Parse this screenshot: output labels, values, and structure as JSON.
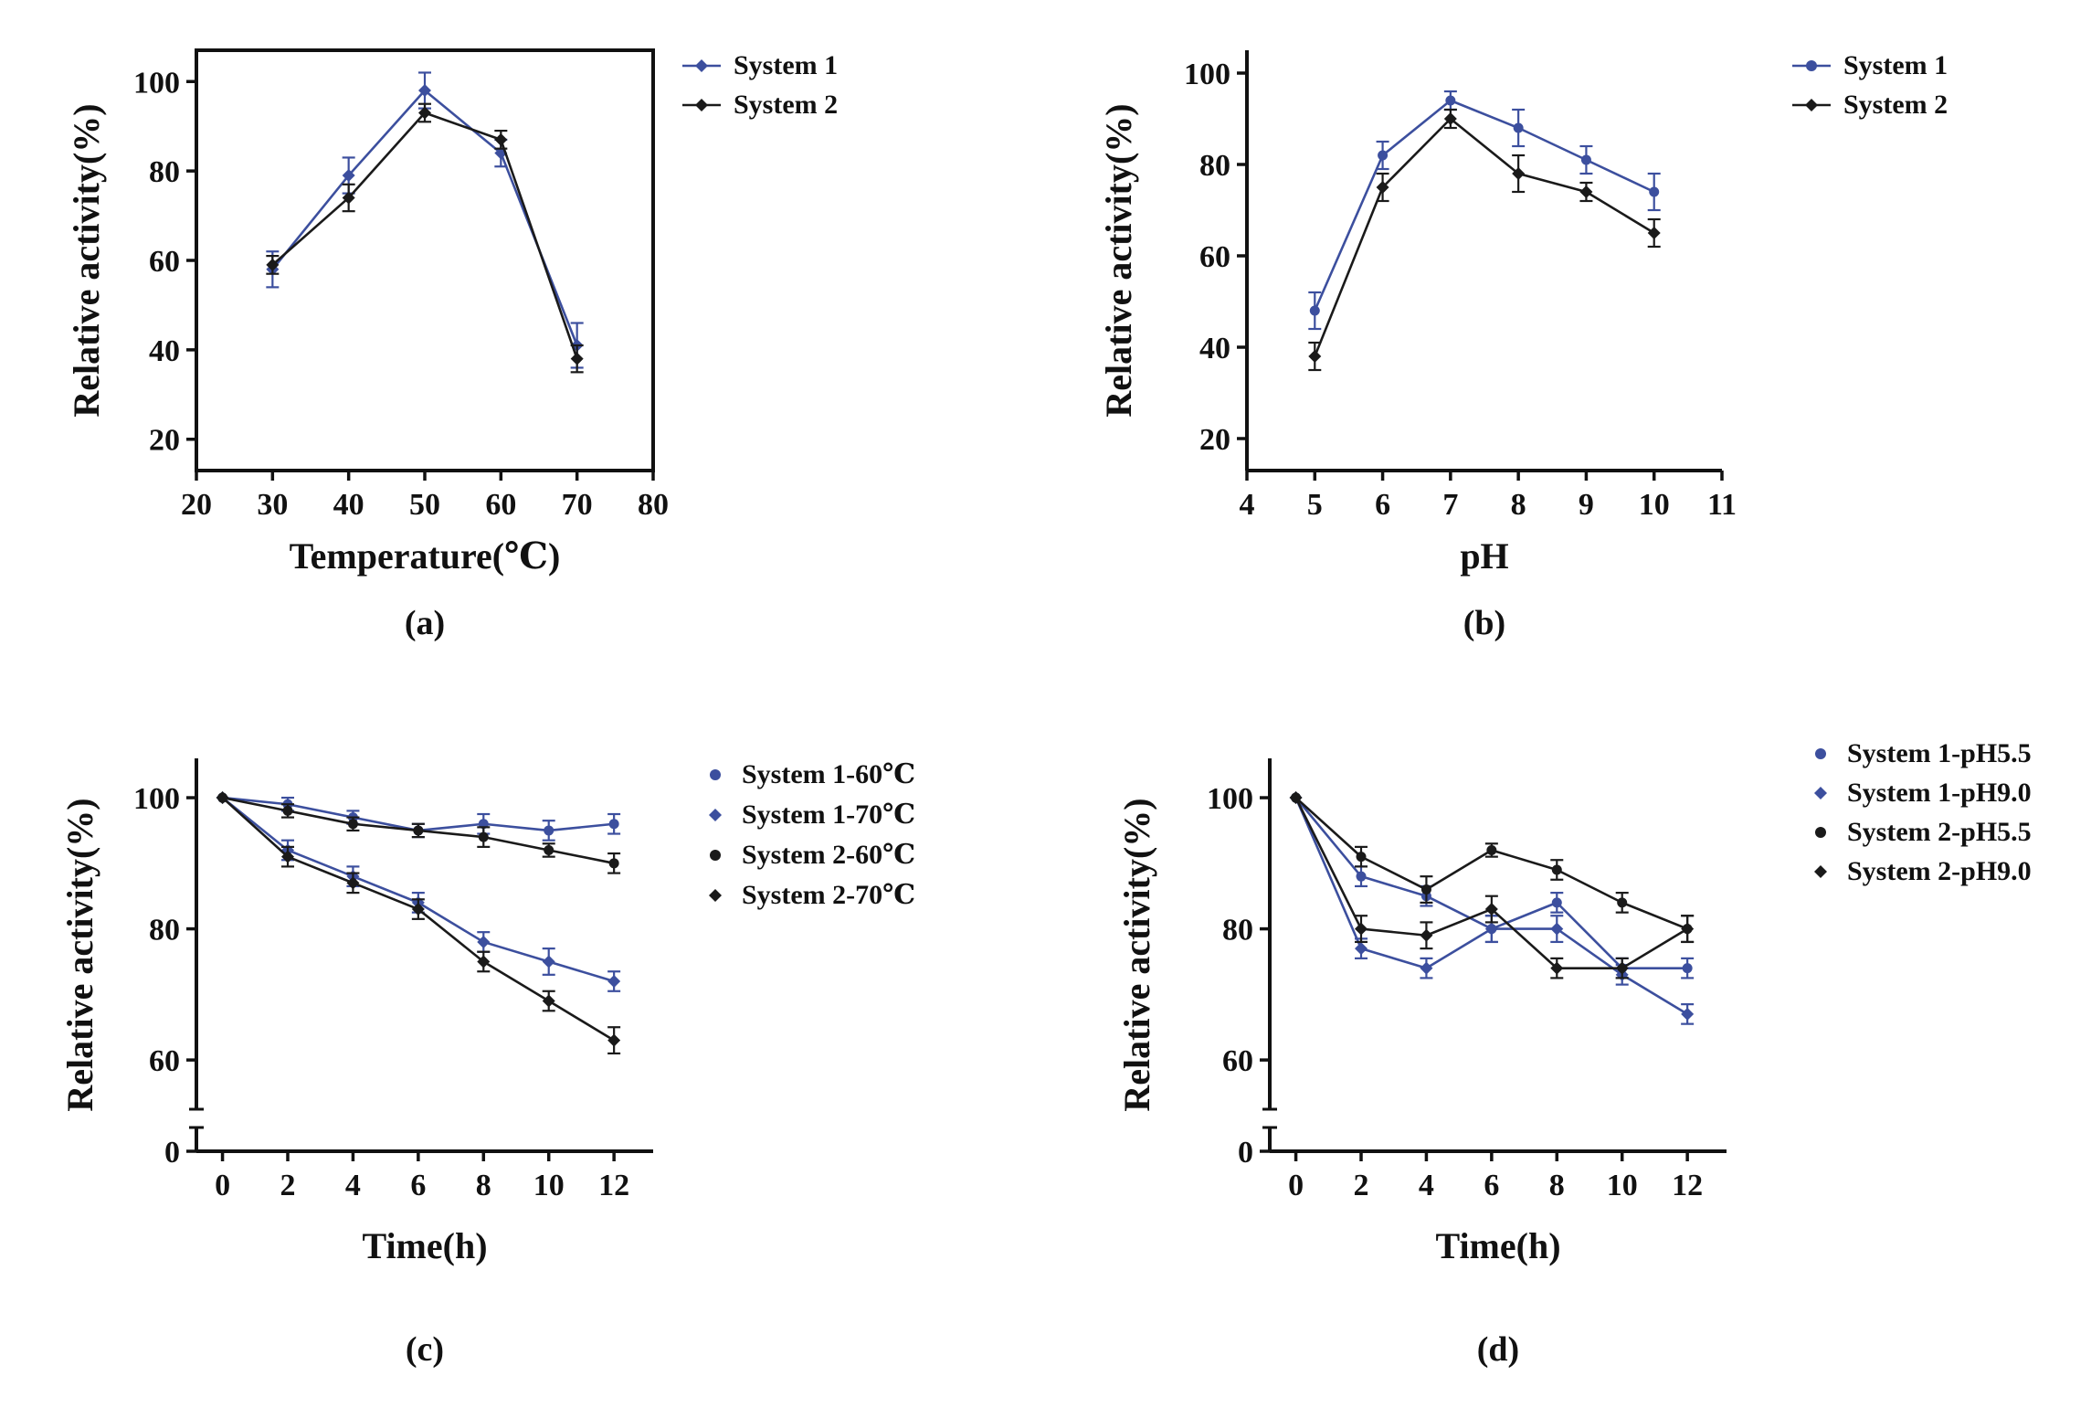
{
  "page": {
    "background": "#ffffff"
  },
  "palette": {
    "system1_blue": "#3c4f9e",
    "system2_black": "#1a1a1a",
    "axis": "#111111"
  },
  "chart_data": [
    {
      "type": "line",
      "panel": "a",
      "caption": "(a)",
      "title": "",
      "xlabel": "Temperature(℃)",
      "ylabel": "Relative activity(%)",
      "x": [
        30,
        40,
        50,
        60,
        70
      ],
      "xlim": [
        20,
        80
      ],
      "xticks": [
        20,
        30,
        40,
        50,
        60,
        70,
        80
      ],
      "ylim": [
        13,
        107
      ],
      "yticks": [
        20,
        40,
        60,
        80,
        100
      ],
      "frame": "box",
      "grid": false,
      "legend_position": "outside-top-right",
      "series": [
        {
          "name": "System 1",
          "color": "#3c4f9e",
          "marker": "diamond",
          "values": [
            58,
            79,
            98,
            84,
            41
          ],
          "errors": [
            4,
            4,
            4,
            3,
            5
          ]
        },
        {
          "name": "System 2",
          "color": "#1a1a1a",
          "marker": "diamond",
          "values": [
            59,
            74,
            93,
            87,
            38
          ],
          "errors": [
            2,
            3,
            2,
            2,
            3
          ]
        }
      ]
    },
    {
      "type": "line",
      "panel": "b",
      "caption": "(b)",
      "title": "",
      "xlabel": "pH",
      "ylabel": "Relative activity(%)",
      "x": [
        5,
        6,
        7,
        8,
        9,
        10
      ],
      "xlim": [
        4,
        11
      ],
      "xticks": [
        4,
        5,
        6,
        7,
        8,
        9,
        10,
        11
      ],
      "ylim": [
        13,
        105
      ],
      "yticks": [
        20,
        40,
        60,
        80,
        100
      ],
      "frame": "L",
      "grid": false,
      "legend_position": "outside-top-right",
      "series": [
        {
          "name": "System 1",
          "color": "#3c4f9e",
          "marker": "circle",
          "values": [
            48,
            82,
            94,
            88,
            81,
            74
          ],
          "errors": [
            4,
            3,
            2,
            4,
            3,
            4
          ]
        },
        {
          "name": "System 2",
          "color": "#1a1a1a",
          "marker": "diamond",
          "values": [
            38,
            75,
            90,
            78,
            74,
            65
          ],
          "errors": [
            3,
            3,
            2,
            4,
            2,
            3
          ]
        }
      ]
    },
    {
      "type": "line",
      "panel": "c",
      "caption": "(c)",
      "title": "",
      "xlabel": "Time(h)",
      "ylabel": "Relative activity(%)",
      "x": [
        0,
        2,
        4,
        6,
        8,
        10,
        12
      ],
      "xlim": [
        -0.8,
        13.2
      ],
      "xticks": [
        0,
        2,
        4,
        6,
        8,
        10,
        12
      ],
      "ylim": [
        55,
        106
      ],
      "yticks": [
        0,
        60,
        80,
        100
      ],
      "ybreak": {
        "enabled": true,
        "resume_value": 55,
        "lower_tick": 0
      },
      "frame": "L",
      "grid": false,
      "legend_position": "outside-top-right",
      "series": [
        {
          "name": "System 1-60℃",
          "color": "#3c4f9e",
          "marker": "circle",
          "values": [
            100,
            99,
            97,
            95,
            96,
            95,
            96
          ],
          "errors": [
            0,
            1,
            1,
            1,
            1.5,
            1.5,
            1.5
          ]
        },
        {
          "name": "System 1-70℃",
          "color": "#3c4f9e",
          "marker": "diamond",
          "values": [
            100,
            92,
            88,
            84,
            78,
            75,
            72
          ],
          "errors": [
            0,
            1.5,
            1.5,
            1.5,
            1.5,
            2,
            1.5
          ]
        },
        {
          "name": "System 2-60℃",
          "color": "#1a1a1a",
          "marker": "circle",
          "values": [
            100,
            98,
            96,
            95,
            94,
            92,
            90
          ],
          "errors": [
            0,
            1,
            1,
            1,
            1.5,
            1,
            1.5
          ]
        },
        {
          "name": "System 2-70℃",
          "color": "#1a1a1a",
          "marker": "diamond",
          "values": [
            100,
            91,
            87,
            83,
            75,
            69,
            63
          ],
          "errors": [
            0,
            1.5,
            1.5,
            1.5,
            1.5,
            1.5,
            2
          ]
        }
      ]
    },
    {
      "type": "line",
      "panel": "d",
      "caption": "(d)",
      "title": "",
      "xlabel": "Time(h)",
      "ylabel": "Relative activity(%)",
      "x": [
        0,
        2,
        4,
        6,
        8,
        10,
        12
      ],
      "xlim": [
        -0.8,
        13.2
      ],
      "xticks": [
        0,
        2,
        4,
        6,
        8,
        10,
        12
      ],
      "ylim": [
        55,
        106
      ],
      "yticks": [
        0,
        60,
        80,
        100
      ],
      "ybreak": {
        "enabled": true,
        "resume_value": 55,
        "lower_tick": 0
      },
      "frame": "L",
      "grid": false,
      "legend_position": "outside-top-right",
      "series": [
        {
          "name": "System 1-pH5.5",
          "color": "#3c4f9e",
          "marker": "circle",
          "values": [
            100,
            88,
            85,
            80,
            84,
            74,
            74
          ],
          "errors": [
            0,
            1.5,
            1.5,
            2,
            1.5,
            1.5,
            1.5
          ]
        },
        {
          "name": "System 1-pH9.0",
          "color": "#3c4f9e",
          "marker": "diamond",
          "values": [
            100,
            77,
            74,
            80,
            80,
            73,
            67
          ],
          "errors": [
            0,
            1.5,
            1.5,
            2,
            2,
            1.5,
            1.5
          ]
        },
        {
          "name": "System 2-pH5.5",
          "color": "#1a1a1a",
          "marker": "circle",
          "values": [
            100,
            91,
            86,
            92,
            89,
            84,
            80
          ],
          "errors": [
            0,
            1.5,
            2,
            1,
            1.5,
            1.5,
            2
          ]
        },
        {
          "name": "System 2-pH9.0",
          "color": "#1a1a1a",
          "marker": "diamond",
          "values": [
            100,
            80,
            79,
            83,
            74,
            74,
            80
          ],
          "errors": [
            0,
            2,
            2,
            2,
            1.5,
            1.5,
            2
          ]
        }
      ]
    }
  ]
}
